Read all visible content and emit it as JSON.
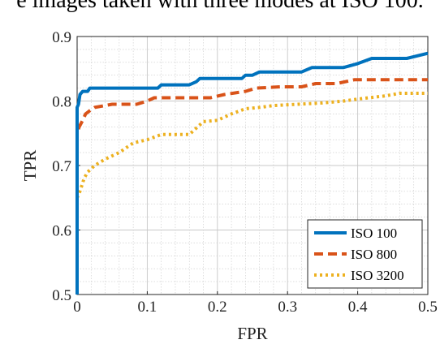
{
  "caption": "e images taken with three modes at ISO 100.",
  "chart_data": {
    "type": "line",
    "title": "",
    "xlabel": "FPR",
    "ylabel": "TPR",
    "xlim": [
      0,
      0.5
    ],
    "ylim": [
      0.5,
      0.9
    ],
    "xticks": [
      0,
      0.1,
      0.2,
      0.3,
      0.4,
      0.5
    ],
    "xtick_labels": [
      "0",
      "0.1",
      "0.2",
      "0.3",
      "0.4",
      "0.5"
    ],
    "yticks": [
      0.5,
      0.6,
      0.7,
      0.8,
      0.9
    ],
    "ytick_labels": [
      "0.5",
      "0.6",
      "0.7",
      "0.8",
      "0.9"
    ],
    "grid": true,
    "legend_position": "bottom-right",
    "series": [
      {
        "name": "ISO 100",
        "color": "#0072BD",
        "style": "solid",
        "points": [
          [
            0,
            0.5
          ],
          [
            0,
            0.79
          ],
          [
            0.002,
            0.795
          ],
          [
            0.004,
            0.81
          ],
          [
            0.008,
            0.815
          ],
          [
            0.015,
            0.815
          ],
          [
            0.018,
            0.82
          ],
          [
            0.05,
            0.82
          ],
          [
            0.1,
            0.82
          ],
          [
            0.115,
            0.82
          ],
          [
            0.12,
            0.825
          ],
          [
            0.16,
            0.825
          ],
          [
            0.17,
            0.83
          ],
          [
            0.175,
            0.835
          ],
          [
            0.235,
            0.835
          ],
          [
            0.24,
            0.84
          ],
          [
            0.25,
            0.84
          ],
          [
            0.26,
            0.845
          ],
          [
            0.32,
            0.845
          ],
          [
            0.335,
            0.852
          ],
          [
            0.38,
            0.852
          ],
          [
            0.4,
            0.858
          ],
          [
            0.42,
            0.866
          ],
          [
            0.47,
            0.866
          ],
          [
            0.5,
            0.874
          ]
        ]
      },
      {
        "name": "ISO 800",
        "color": "#D95319",
        "style": "dashed",
        "points": [
          [
            0,
            0.5
          ],
          [
            0,
            0.75
          ],
          [
            0.003,
            0.76
          ],
          [
            0.008,
            0.77
          ],
          [
            0.012,
            0.78
          ],
          [
            0.018,
            0.785
          ],
          [
            0.025,
            0.79
          ],
          [
            0.05,
            0.795
          ],
          [
            0.085,
            0.795
          ],
          [
            0.1,
            0.8
          ],
          [
            0.11,
            0.805
          ],
          [
            0.19,
            0.805
          ],
          [
            0.21,
            0.81
          ],
          [
            0.24,
            0.815
          ],
          [
            0.255,
            0.82
          ],
          [
            0.29,
            0.822
          ],
          [
            0.32,
            0.822
          ],
          [
            0.34,
            0.827
          ],
          [
            0.37,
            0.827
          ],
          [
            0.395,
            0.833
          ],
          [
            0.5,
            0.833
          ]
        ]
      },
      {
        "name": "ISO 3200",
        "color": "#EDB120",
        "style": "dotted",
        "points": [
          [
            0,
            0.5
          ],
          [
            0,
            0.65
          ],
          [
            0.004,
            0.66
          ],
          [
            0.01,
            0.68
          ],
          [
            0.015,
            0.69
          ],
          [
            0.025,
            0.7
          ],
          [
            0.04,
            0.71
          ],
          [
            0.06,
            0.72
          ],
          [
            0.08,
            0.735
          ],
          [
            0.1,
            0.74
          ],
          [
            0.12,
            0.748
          ],
          [
            0.16,
            0.748
          ],
          [
            0.18,
            0.768
          ],
          [
            0.2,
            0.77
          ],
          [
            0.22,
            0.78
          ],
          [
            0.24,
            0.788
          ],
          [
            0.26,
            0.79
          ],
          [
            0.28,
            0.793
          ],
          [
            0.35,
            0.797
          ],
          [
            0.38,
            0.8
          ],
          [
            0.4,
            0.803
          ],
          [
            0.44,
            0.808
          ],
          [
            0.46,
            0.812
          ],
          [
            0.5,
            0.812
          ]
        ]
      }
    ]
  }
}
